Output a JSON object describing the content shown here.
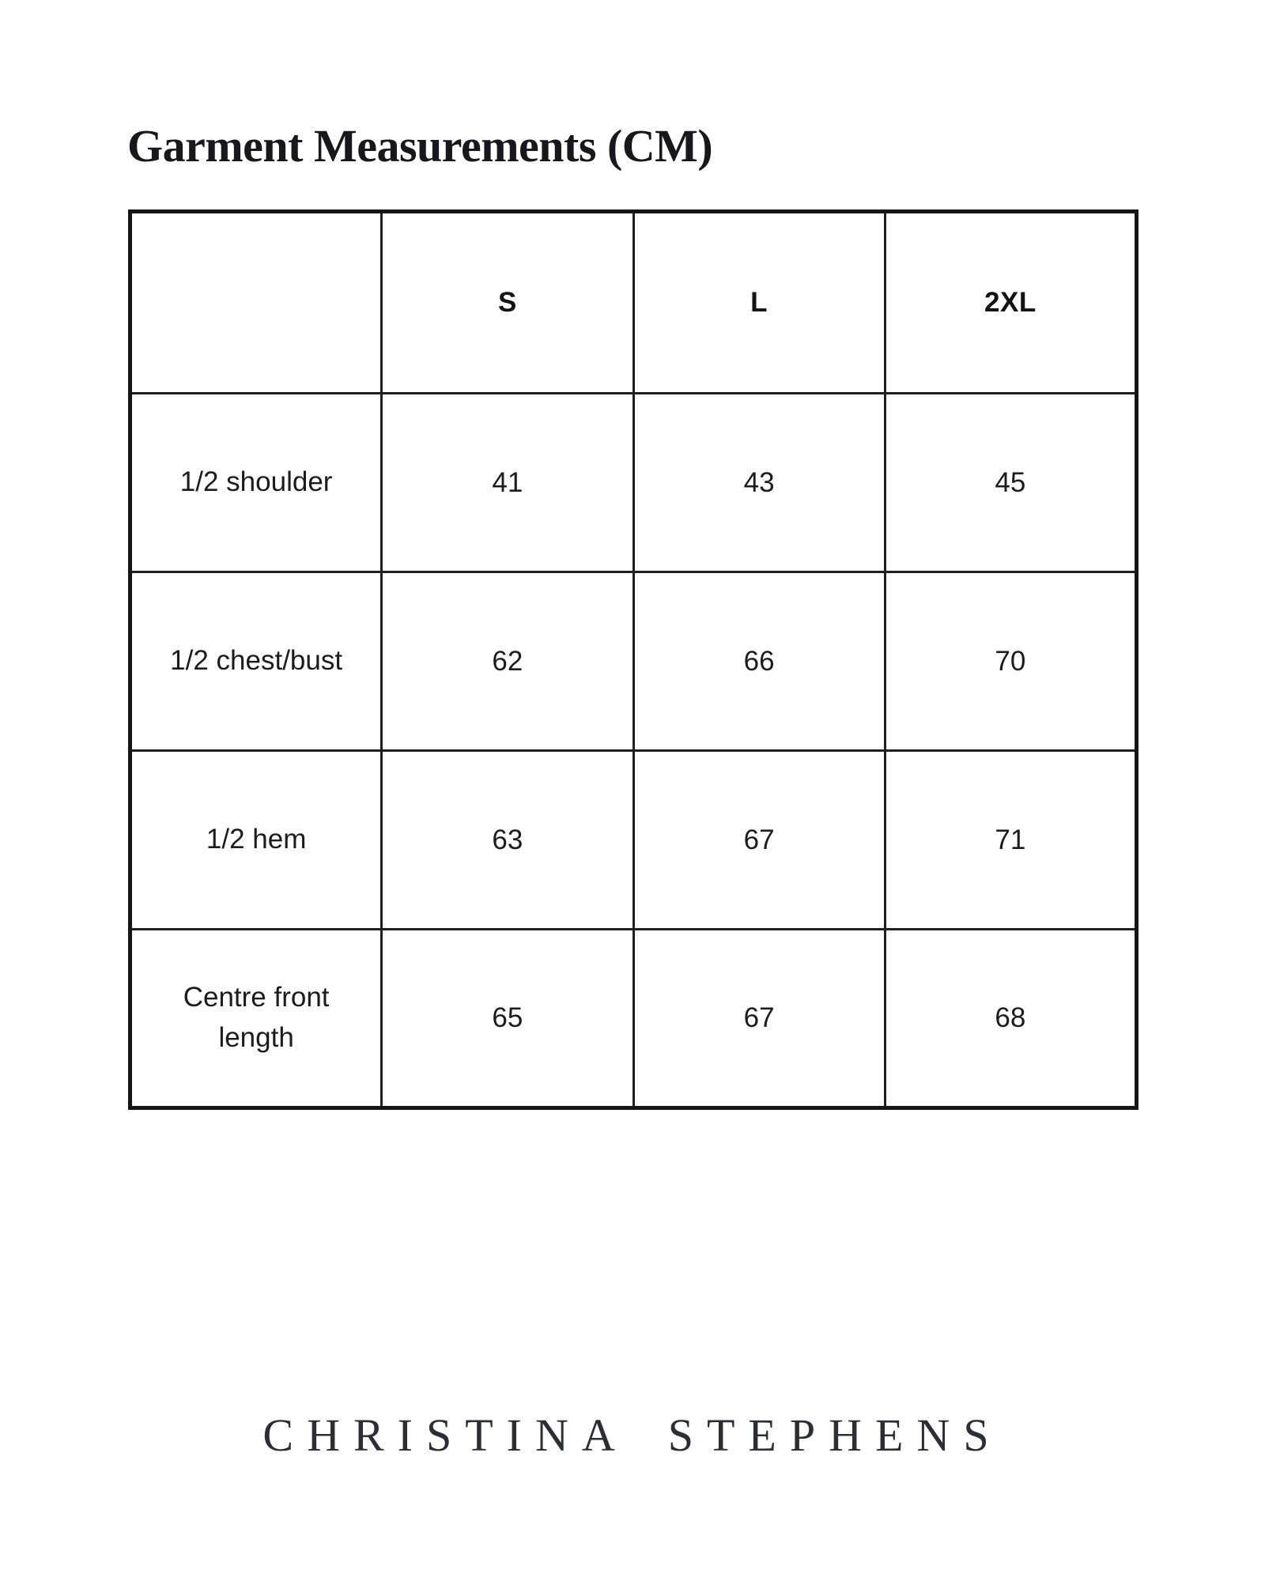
{
  "page": {
    "title": "Garment Measurements (CM)",
    "brand": {
      "word1": "CHRISTINA",
      "word2": "STEPHENS"
    }
  },
  "table": {
    "columns": [
      "",
      "S",
      "L",
      "2XL"
    ],
    "rows": [
      {
        "label": "1/2 shoulder",
        "values": [
          "41",
          "43",
          "45"
        ]
      },
      {
        "label": "1/2 chest/bust",
        "values": [
          "62",
          "66",
          "70"
        ]
      },
      {
        "label": "1/2 hem",
        "values": [
          "63",
          "67",
          "71"
        ]
      },
      {
        "label": "Centre front length",
        "values": [
          "65",
          "67",
          "68"
        ]
      }
    ]
  },
  "chart_data": {
    "type": "table",
    "title": "Garment Measurements (CM)",
    "categories": [
      "S",
      "L",
      "2XL"
    ],
    "series": [
      {
        "name": "1/2 shoulder",
        "values": [
          41,
          43,
          45
        ]
      },
      {
        "name": "1/2 chest/bust",
        "values": [
          62,
          66,
          70
        ]
      },
      {
        "name": "1/2 hem",
        "values": [
          63,
          67,
          71
        ]
      },
      {
        "name": "Centre front length",
        "values": [
          65,
          67,
          68
        ]
      }
    ]
  },
  "colors": {
    "background": "#ffffff",
    "table_border": "#151515",
    "text": "#1c1c1c",
    "brand_text": "#2d2d35"
  }
}
